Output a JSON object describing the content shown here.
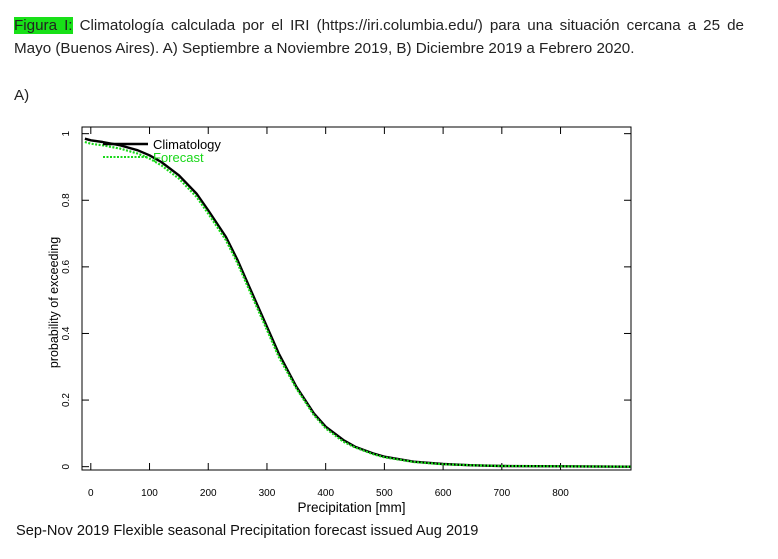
{
  "caption": {
    "prefix": "Figura I:",
    "text": " Climatología calculada por el IRI (https://iri.columbia.edu/) para una situación cercana a 25 de Mayo (Buenos Aires). A) Septiembre a Noviembre 2019, B) Diciembre 2019 a Febrero 2020.",
    "highlight_color": "#18e018"
  },
  "panel_label": "A)",
  "footer": "Sep-Nov 2019 Flexible seasonal Precipitation forecast issued Aug 2019",
  "chart_data": {
    "type": "line",
    "xlabel": "Precipitation [mm]",
    "ylabel": "probability of exceeding",
    "xlim": [
      -15,
      920
    ],
    "ylim": [
      -0.01,
      1.02
    ],
    "xticks": [
      0,
      100,
      200,
      300,
      400,
      500,
      600,
      700,
      800
    ],
    "yticks": [
      0,
      0.2,
      0.4,
      0.6,
      0.8,
      1
    ],
    "ytick_labels": [
      "0",
      "0.2",
      "0.4",
      "0.6",
      "0.8",
      "1"
    ],
    "grid": false,
    "legend": "top-left",
    "series": [
      {
        "name": "Climatology",
        "color": "#000000",
        "style": "solid",
        "x": [
          -10,
          0,
          20,
          50,
          80,
          100,
          120,
          150,
          180,
          200,
          230,
          250,
          270,
          300,
          320,
          350,
          380,
          400,
          430,
          450,
          480,
          500,
          550,
          600,
          650,
          700,
          800,
          920
        ],
        "y": [
          0.985,
          0.98,
          0.975,
          0.965,
          0.95,
          0.935,
          0.915,
          0.875,
          0.82,
          0.77,
          0.69,
          0.62,
          0.54,
          0.42,
          0.34,
          0.24,
          0.16,
          0.12,
          0.08,
          0.06,
          0.04,
          0.03,
          0.015,
          0.008,
          0.004,
          0.002,
          0.001,
          0.0
        ]
      },
      {
        "name": "Forecast",
        "color": "#19d719",
        "style": "dotted",
        "x": [
          -10,
          0,
          20,
          50,
          80,
          100,
          120,
          150,
          180,
          200,
          230,
          250,
          270,
          300,
          320,
          350,
          380,
          400,
          430,
          450,
          480,
          500,
          550,
          600,
          650,
          700,
          800,
          920
        ],
        "y": [
          0.975,
          0.97,
          0.965,
          0.955,
          0.94,
          0.925,
          0.905,
          0.865,
          0.81,
          0.76,
          0.68,
          0.61,
          0.53,
          0.41,
          0.33,
          0.235,
          0.155,
          0.115,
          0.075,
          0.058,
          0.038,
          0.028,
          0.014,
          0.007,
          0.004,
          0.002,
          0.001,
          0.0
        ]
      }
    ]
  }
}
